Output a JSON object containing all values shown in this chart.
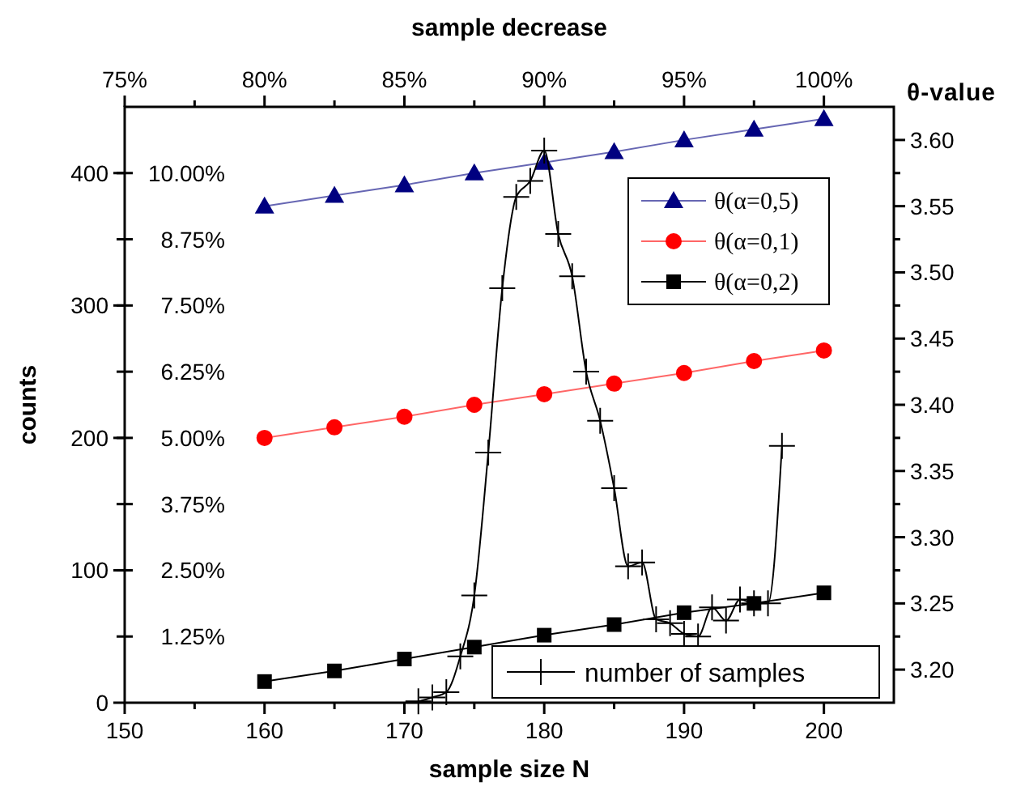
{
  "chart_data": {
    "type": "line",
    "xlabel": "sample size N",
    "x2label": "sample decrease",
    "ylabel": "counts",
    "y2label": "θ-value",
    "xlim": [
      150,
      205
    ],
    "xticks": [
      150,
      {
        "value": 155,
        "label": null
      },
      160,
      {
        "value": 165,
        "label": null
      },
      170,
      {
        "value": 175,
        "label": null
      },
      180,
      {
        "value": 185,
        "label": null
      },
      190,
      {
        "value": 195,
        "label": null
      },
      200
    ],
    "x2lim": [
      75,
      102.5
    ],
    "x2ticks": [
      {
        "value": 75,
        "label": "75%"
      },
      {
        "value": 77.5,
        "label": null
      },
      {
        "value": 80,
        "label": "80%"
      },
      {
        "value": 82.5,
        "label": null
      },
      {
        "value": 85,
        "label": "85%"
      },
      {
        "value": 87.5,
        "label": null
      },
      {
        "value": 90,
        "label": "90%"
      },
      {
        "value": 92.5,
        "label": null
      },
      {
        "value": 95,
        "label": "95%"
      },
      {
        "value": 97.5,
        "label": null
      },
      {
        "value": 100,
        "label": "100%"
      }
    ],
    "ylim": [
      0,
      450
    ],
    "yticks": [
      0,
      100,
      200,
      300,
      400
    ],
    "y3lim": [
      0,
      11.25
    ],
    "y3ticks": [
      {
        "value": 1.25,
        "label": "1.25%"
      },
      {
        "value": 2.5,
        "label": "2.50%"
      },
      {
        "value": 3.75,
        "label": "3.75%"
      },
      {
        "value": 5,
        "label": "5.00%"
      },
      {
        "value": 6.25,
        "label": "6.25%"
      },
      {
        "value": 7.5,
        "label": "7.50%"
      },
      {
        "value": 8.75,
        "label": "8.75%"
      },
      {
        "value": 10,
        "label": "10.00%"
      }
    ],
    "y2lim": [
      3.175,
      3.625
    ],
    "y2ticks": [
      {
        "value": 3.2,
        "label": "3.20"
      },
      {
        "value": 3.225,
        "label": null
      },
      {
        "value": 3.25,
        "label": "3.25"
      },
      {
        "value": 3.275,
        "label": null
      },
      {
        "value": 3.3,
        "label": "3.30"
      },
      {
        "value": 3.325,
        "label": null
      },
      {
        "value": 3.35,
        "label": "3.35"
      },
      {
        "value": 3.375,
        "label": null
      },
      {
        "value": 3.4,
        "label": "3.40"
      },
      {
        "value": 3.425,
        "label": null
      },
      {
        "value": 3.45,
        "label": "3.45"
      },
      {
        "value": 3.475,
        "label": null
      },
      {
        "value": 3.5,
        "label": "3.50"
      },
      {
        "value": 3.525,
        "label": null
      },
      {
        "value": 3.55,
        "label": "3.55"
      },
      {
        "value": 3.575,
        "label": null
      },
      {
        "value": 3.6,
        "label": "3.60"
      }
    ],
    "legend": "right",
    "grid": false,
    "series": [
      {
        "name": "θ(α=0,5)",
        "color": "#000080",
        "axis": "y2",
        "marker": "triangle",
        "x": [
          160,
          165,
          170,
          175,
          180,
          185,
          190,
          195,
          200
        ],
        "values": [
          3.55,
          3.558,
          3.566,
          3.575,
          3.583,
          3.591,
          3.6,
          3.608,
          3.616
        ]
      },
      {
        "name": "θ(α=0,1)",
        "color": "#ff0000",
        "axis": "y2",
        "marker": "circle",
        "x": [
          160,
          165,
          170,
          175,
          180,
          185,
          190,
          195,
          200
        ],
        "values": [
          3.375,
          3.383,
          3.391,
          3.4,
          3.408,
          3.416,
          3.424,
          3.433,
          3.441
        ]
      },
      {
        "name": "θ(α=0,2)",
        "color": "#000000",
        "axis": "y2",
        "marker": "square",
        "x": [
          160,
          165,
          170,
          175,
          180,
          185,
          190,
          195,
          200
        ],
        "values": [
          3.191,
          3.199,
          3.208,
          3.217,
          3.226,
          3.234,
          3.243,
          3.25,
          3.258
        ]
      },
      {
        "name": "number of samples",
        "color": "#000000",
        "marker": "cross",
        "x": [
          171,
          172,
          173,
          174,
          175,
          176,
          177,
          178,
          179,
          180,
          181,
          182,
          183,
          184,
          185,
          186,
          187,
          188,
          189,
          190,
          191,
          192,
          193,
          194,
          195,
          196,
          197
        ],
        "values": [
          1,
          4,
          8,
          35,
          81,
          189,
          313,
          382,
          394,
          417,
          354,
          322,
          250,
          213,
          162,
          103,
          106,
          63,
          60,
          52,
          50,
          72,
          62,
          78,
          75,
          75,
          194
        ]
      }
    ]
  }
}
